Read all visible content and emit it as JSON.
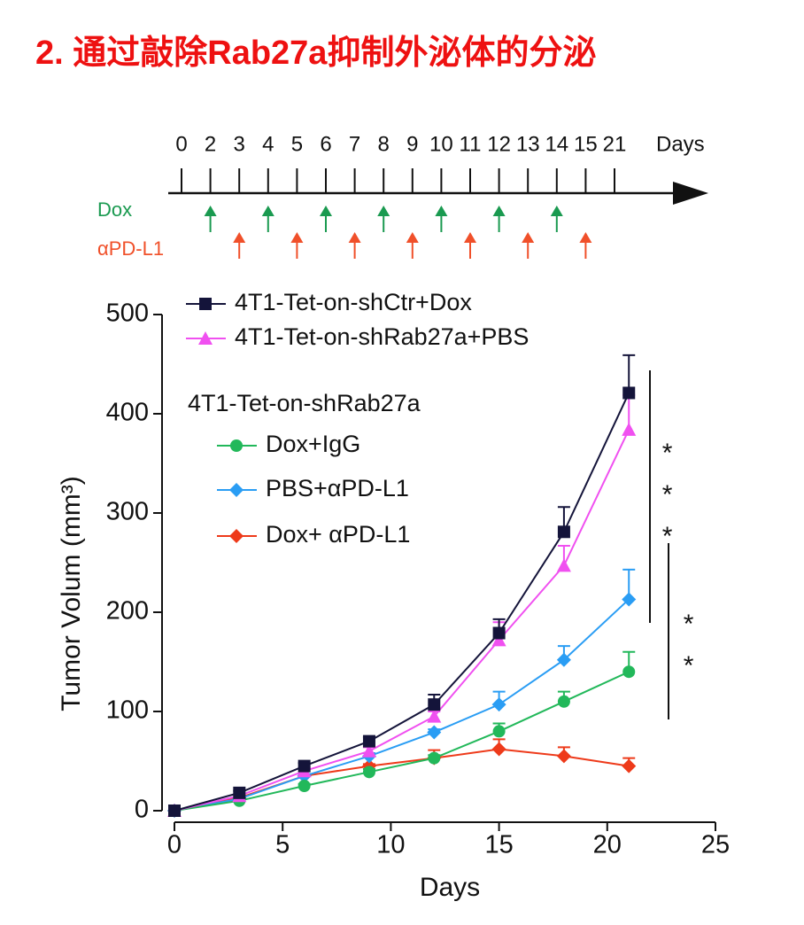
{
  "title": "2. 通过敲除Rab27a抑制外泌体的分泌",
  "timeline": {
    "ticks": [
      0,
      2,
      3,
      4,
      5,
      6,
      7,
      8,
      9,
      10,
      11,
      12,
      13,
      14,
      15,
      21
    ],
    "unit": "Days",
    "dox_label": "Dox",
    "dox_days": [
      2,
      4,
      6,
      8,
      10,
      12,
      14
    ],
    "dox_color": "#1a9a50",
    "pd_label": "αPD-L1",
    "pd_days": [
      3,
      5,
      7,
      9,
      11,
      13,
      15
    ],
    "pd_color": "#f0502a"
  },
  "chart_data": {
    "type": "line",
    "x_label": "Days",
    "y_label": "Tumor Volum (mm³)",
    "legend_group_label": "4T1-Tet-on-shRab27a",
    "xlim": [
      0,
      25
    ],
    "xticks": [
      0,
      5,
      10,
      15,
      20,
      25
    ],
    "ylim": [
      0,
      500
    ],
    "yticks": [
      0,
      100,
      200,
      300,
      400,
      500
    ],
    "x": [
      0,
      3,
      6,
      9,
      12,
      15,
      18,
      21
    ],
    "series": [
      {
        "name": "4T1-Tet-on-shCtr+Dox",
        "color": "#14143a",
        "marker": "square",
        "values": [
          0,
          18,
          45,
          70,
          107,
          179,
          281,
          421
        ],
        "errors": [
          0,
          2,
          3,
          4,
          10,
          14,
          25,
          38
        ]
      },
      {
        "name": "4T1-Tet-on-shRab27a+PBS",
        "color": "#f050f0",
        "marker": "triangle",
        "values": [
          0,
          15,
          40,
          60,
          95,
          172,
          247,
          384
        ],
        "errors": [
          0,
          2,
          3,
          4,
          5,
          18,
          20,
          35
        ]
      },
      {
        "name": "Dox+IgG",
        "color": "#22b85a",
        "marker": "circle",
        "values": [
          0,
          10,
          25,
          39,
          53,
          80,
          110,
          140
        ],
        "errors": [
          0,
          1,
          2,
          3,
          3,
          8,
          10,
          20
        ]
      },
      {
        "name": "PBS+αPD-L1",
        "color": "#2a9df4",
        "marker": "diamond",
        "values": [
          0,
          12,
          35,
          55,
          79,
          107,
          152,
          213
        ],
        "errors": [
          0,
          1,
          2,
          3,
          3,
          13,
          14,
          30
        ]
      },
      {
        "name": "Dox+ αPD-L1",
        "color": "#ee3a1a",
        "marker": "diamond",
        "values": [
          0,
          13,
          35,
          45,
          53,
          62,
          55,
          45
        ],
        "errors": [
          0,
          1,
          2,
          2,
          8,
          10,
          9,
          8
        ]
      }
    ],
    "annotations": [
      "***",
      "**"
    ]
  }
}
